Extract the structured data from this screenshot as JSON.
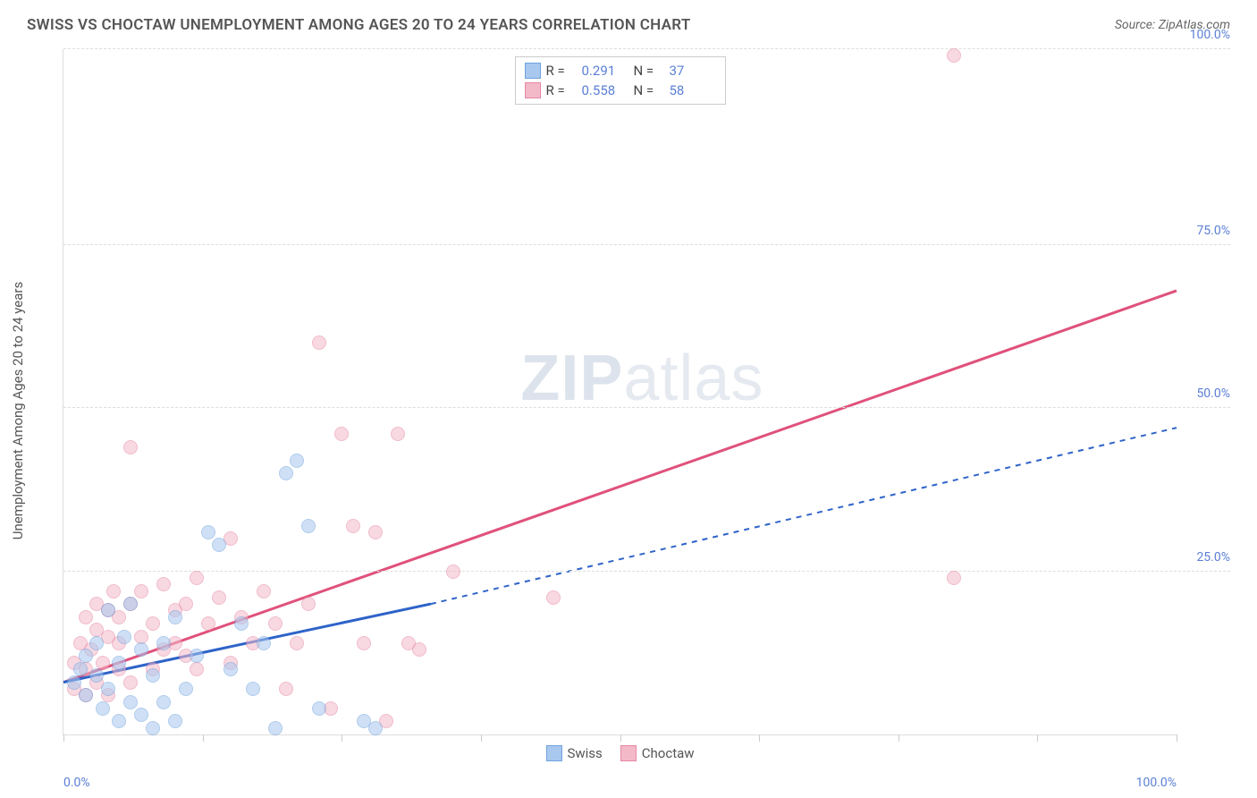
{
  "header": {
    "title": "SWISS VS CHOCTAW UNEMPLOYMENT AMONG AGES 20 TO 24 YEARS CORRELATION CHART",
    "source": "Source: ZipAtlas.com"
  },
  "watermark": {
    "zip": "ZIP",
    "atlas": "atlas"
  },
  "chart": {
    "type": "scatter-with-regression",
    "y_label": "Unemployment Among Ages 20 to 24 years",
    "background_color": "#ffffff",
    "grid_color": "#dddddd",
    "grid_dash": "4,4",
    "axis_color": "#dddddd",
    "tick_label_color": "#5b7fd6",
    "tick_label_fontsize": 14,
    "xlim": [
      0,
      100
    ],
    "ylim": [
      0,
      105
    ],
    "x_ticks": [
      0,
      12.5,
      25,
      37.5,
      50,
      62.5,
      75,
      87.5,
      100
    ],
    "x_tick_labels": {
      "0": "0.0%",
      "100": "100.0%"
    },
    "y_gridlines": [
      25,
      50,
      75,
      105
    ],
    "y_tick_labels": {
      "25": "25.0%",
      "50": "50.0%",
      "75": "75.0%",
      "105": "100.0%"
    },
    "marker_size": 16,
    "marker_opacity": 0.55,
    "series": {
      "swiss": {
        "label": "Swiss",
        "fill_color": "#a9c8ef",
        "border_color": "#6fa3dd",
        "line_color": "#2e63c9",
        "line_width": 3,
        "r_value": "0.291",
        "n_value": "37",
        "regression": {
          "x1": 0,
          "y1": 8,
          "x2": 33,
          "y2": 20,
          "dash_x2": 100,
          "dash_y2": 47
        },
        "points": [
          [
            1,
            8
          ],
          [
            1.5,
            10
          ],
          [
            2,
            6
          ],
          [
            2,
            12
          ],
          [
            3,
            9
          ],
          [
            3,
            14
          ],
          [
            3.5,
            4
          ],
          [
            4,
            7
          ],
          [
            4,
            19
          ],
          [
            5,
            2
          ],
          [
            5,
            11
          ],
          [
            5.5,
            15
          ],
          [
            6,
            5
          ],
          [
            6,
            20
          ],
          [
            7,
            3
          ],
          [
            7,
            13
          ],
          [
            8,
            1
          ],
          [
            8,
            9
          ],
          [
            9,
            5
          ],
          [
            9,
            14
          ],
          [
            10,
            2
          ],
          [
            10,
            18
          ],
          [
            11,
            7
          ],
          [
            12,
            12
          ],
          [
            13,
            31
          ],
          [
            14,
            29
          ],
          [
            15,
            10
          ],
          [
            16,
            17
          ],
          [
            17,
            7
          ],
          [
            18,
            14
          ],
          [
            19,
            1
          ],
          [
            20,
            40
          ],
          [
            21,
            42
          ],
          [
            22,
            32
          ],
          [
            23,
            4
          ],
          [
            27,
            2
          ],
          [
            28,
            1
          ]
        ]
      },
      "choctaw": {
        "label": "Choctaw",
        "fill_color": "#f4b9c9",
        "border_color": "#e587a3",
        "line_color": "#e0517b",
        "line_width": 3,
        "r_value": "0.558",
        "n_value": "58",
        "regression": {
          "x1": 0,
          "y1": 8,
          "x2": 100,
          "y2": 68
        },
        "points": [
          [
            1,
            7
          ],
          [
            1,
            11
          ],
          [
            1.5,
            14
          ],
          [
            2,
            6
          ],
          [
            2,
            10
          ],
          [
            2,
            18
          ],
          [
            2.5,
            13
          ],
          [
            3,
            8
          ],
          [
            3,
            16
          ],
          [
            3,
            20
          ],
          [
            3.5,
            11
          ],
          [
            4,
            6
          ],
          [
            4,
            15
          ],
          [
            4,
            19
          ],
          [
            4.5,
            22
          ],
          [
            5,
            10
          ],
          [
            5,
            14
          ],
          [
            5,
            18
          ],
          [
            6,
            8
          ],
          [
            6,
            20
          ],
          [
            6,
            44
          ],
          [
            7,
            15
          ],
          [
            7,
            22
          ],
          [
            8,
            10
          ],
          [
            8,
            17
          ],
          [
            9,
            13
          ],
          [
            9,
            23
          ],
          [
            10,
            14
          ],
          [
            10,
            19
          ],
          [
            11,
            12
          ],
          [
            11,
            20
          ],
          [
            12,
            10
          ],
          [
            12,
            24
          ],
          [
            13,
            17
          ],
          [
            14,
            21
          ],
          [
            15,
            11
          ],
          [
            15,
            30
          ],
          [
            16,
            18
          ],
          [
            17,
            14
          ],
          [
            18,
            22
          ],
          [
            19,
            17
          ],
          [
            20,
            7
          ],
          [
            21,
            14
          ],
          [
            22,
            20
          ],
          [
            23,
            60
          ],
          [
            24,
            4
          ],
          [
            25,
            46
          ],
          [
            26,
            32
          ],
          [
            27,
            14
          ],
          [
            28,
            31
          ],
          [
            29,
            2
          ],
          [
            30,
            46
          ],
          [
            31,
            14
          ],
          [
            32,
            13
          ],
          [
            35,
            25
          ],
          [
            44,
            21
          ],
          [
            80,
            24
          ],
          [
            80,
            104
          ]
        ]
      }
    },
    "legend_top": [
      {
        "series": "swiss",
        "r_label": "R =",
        "n_label": "N ="
      },
      {
        "series": "choctaw",
        "r_label": "R =",
        "n_label": "N ="
      }
    ],
    "legend_bottom": [
      {
        "series": "swiss"
      },
      {
        "series": "choctaw"
      }
    ]
  }
}
